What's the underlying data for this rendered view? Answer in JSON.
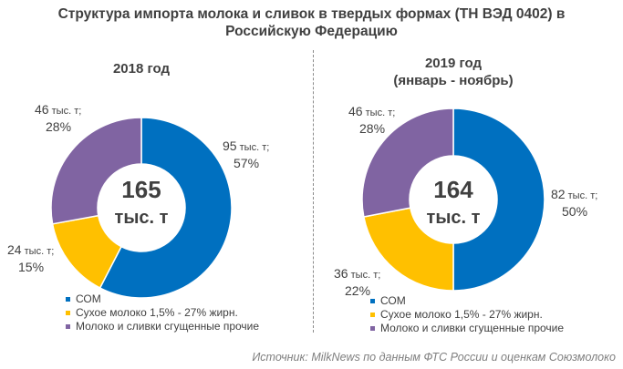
{
  "title_lines": [
    "Структура импорта молока и сливок в твердых формах (ТН ВЭД 0402) в",
    "Российскую Федерацию"
  ],
  "source": "Источник: MilkNews по данным ФТС России и оценкам Союзмолоко",
  "colors": {
    "com": "#0070C0",
    "dry_milk": "#FFC000",
    "condensed": "#8064A2"
  },
  "chart_data": [
    {
      "type": "pie",
      "subtitle_lines": [
        "2018 год"
      ],
      "center_value": "165",
      "center_unit": "тыс. т",
      "categories": [
        "СОМ",
        "Сухое молоко 1,5% - 27% жирн.",
        "Молоко и сливки сгущенные прочие"
      ],
      "values": [
        95,
        24,
        46
      ],
      "labels": [
        {
          "value": "95",
          "unit": " тыс. т;",
          "share": "57%"
        },
        {
          "value": "24",
          "unit": " тыс. т;",
          "share": "15%"
        },
        {
          "value": "46",
          "unit": " тыс. т;",
          "share": "28%"
        }
      ]
    },
    {
      "type": "pie",
      "subtitle_lines": [
        "2019 год",
        "(январь - ноябрь)"
      ],
      "center_value": "164",
      "center_unit": "тыс. т",
      "categories": [
        "СОМ",
        "Сухое молоко 1,5% - 27% жирн.",
        "Молоко и сливки сгущенные прочие"
      ],
      "values": [
        82,
        36,
        46
      ],
      "labels": [
        {
          "value": "82",
          "unit": " тыс. т;",
          "share": "50%"
        },
        {
          "value": "36",
          "unit": " тыс. т;",
          "share": "22%"
        },
        {
          "value": "46",
          "unit": " тыс. т;",
          "share": "28%"
        }
      ]
    }
  ]
}
